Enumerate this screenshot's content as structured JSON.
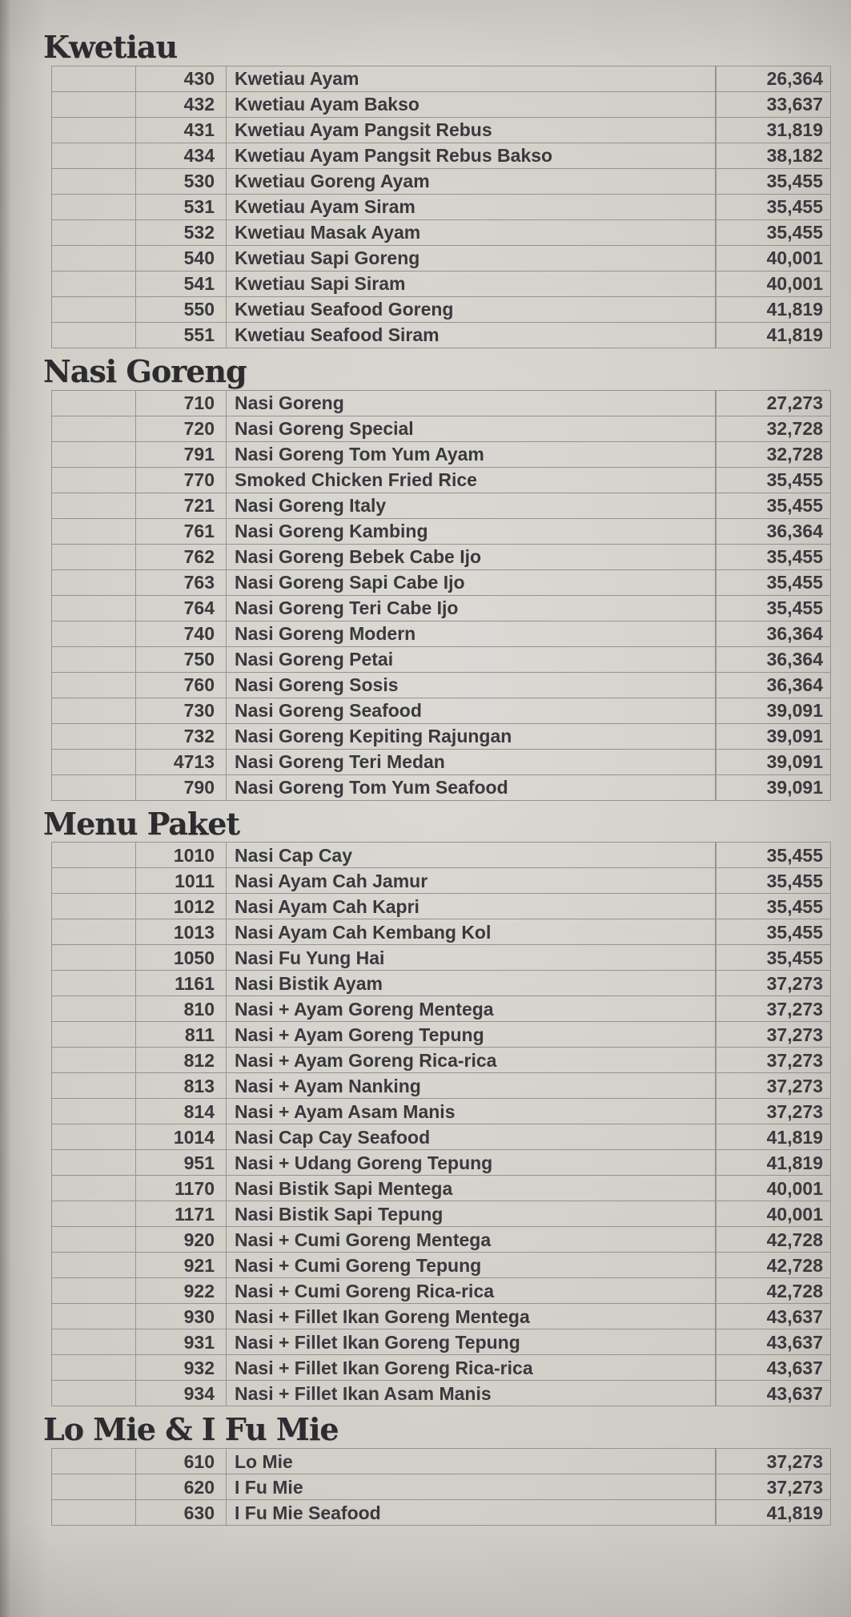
{
  "page": {
    "paper_color": "#d0cdc7",
    "text_color": "#38373b",
    "grid_color": "#96938e"
  },
  "sections": [
    {
      "title": "Kwetiau",
      "items": [
        {
          "code": "430",
          "name": "Kwetiau Ayam",
          "price": "26,364"
        },
        {
          "code": "432",
          "name": "Kwetiau Ayam Bakso",
          "price": "33,637"
        },
        {
          "code": "431",
          "name": "Kwetiau Ayam Pangsit Rebus",
          "price": "31,819"
        },
        {
          "code": "434",
          "name": "Kwetiau Ayam Pangsit Rebus Bakso",
          "price": "38,182"
        },
        {
          "code": "530",
          "name": "Kwetiau Goreng Ayam",
          "price": "35,455"
        },
        {
          "code": "531",
          "name": "Kwetiau Ayam Siram",
          "price": "35,455"
        },
        {
          "code": "532",
          "name": "Kwetiau Masak Ayam",
          "price": "35,455"
        },
        {
          "code": "540",
          "name": "Kwetiau Sapi Goreng",
          "price": "40,001"
        },
        {
          "code": "541",
          "name": "Kwetiau Sapi Siram",
          "price": "40,001"
        },
        {
          "code": "550",
          "name": "Kwetiau Seafood Goreng",
          "price": "41,819"
        },
        {
          "code": "551",
          "name": "Kwetiau Seafood Siram",
          "price": "41,819"
        }
      ]
    },
    {
      "title": "Nasi Goreng",
      "items": [
        {
          "code": "710",
          "name": "Nasi Goreng",
          "price": "27,273"
        },
        {
          "code": "720",
          "name": "Nasi Goreng Special",
          "price": "32,728"
        },
        {
          "code": "791",
          "name": "Nasi Goreng Tom Yum Ayam",
          "price": "32,728"
        },
        {
          "code": "770",
          "name": "Smoked Chicken Fried Rice",
          "price": "35,455"
        },
        {
          "code": "721",
          "name": "Nasi Goreng Italy",
          "price": "35,455"
        },
        {
          "code": "761",
          "name": "Nasi Goreng Kambing",
          "price": "36,364"
        },
        {
          "code": "762",
          "name": "Nasi Goreng Bebek Cabe Ijo",
          "price": "35,455"
        },
        {
          "code": "763",
          "name": "Nasi Goreng Sapi Cabe Ijo",
          "price": "35,455"
        },
        {
          "code": "764",
          "name": "Nasi Goreng Teri Cabe Ijo",
          "price": "35,455"
        },
        {
          "code": "740",
          "name": "Nasi Goreng Modern",
          "price": "36,364"
        },
        {
          "code": "750",
          "name": "Nasi Goreng Petai",
          "price": "36,364"
        },
        {
          "code": "760",
          "name": "Nasi Goreng Sosis",
          "price": "36,364"
        },
        {
          "code": "730",
          "name": "Nasi Goreng Seafood",
          "price": "39,091"
        },
        {
          "code": "732",
          "name": "Nasi Goreng Kepiting Rajungan",
          "price": "39,091"
        },
        {
          "code": "4713",
          "name": "Nasi Goreng Teri Medan",
          "price": "39,091"
        },
        {
          "code": "790",
          "name": "Nasi Goreng Tom Yum Seafood",
          "price": "39,091"
        }
      ]
    },
    {
      "title": "Menu Paket",
      "items": [
        {
          "code": "1010",
          "name": "Nasi Cap Cay",
          "price": "35,455"
        },
        {
          "code": "1011",
          "name": "Nasi Ayam Cah Jamur",
          "price": "35,455"
        },
        {
          "code": "1012",
          "name": "Nasi Ayam Cah Kapri",
          "price": "35,455"
        },
        {
          "code": "1013",
          "name": "Nasi Ayam Cah Kembang Kol",
          "price": "35,455"
        },
        {
          "code": "1050",
          "name": "Nasi Fu Yung Hai",
          "price": "35,455"
        },
        {
          "code": "1161",
          "name": "Nasi Bistik Ayam",
          "price": "37,273"
        },
        {
          "code": "810",
          "name": "Nasi + Ayam Goreng Mentega",
          "price": "37,273"
        },
        {
          "code": "811",
          "name": "Nasi + Ayam Goreng Tepung",
          "price": "37,273"
        },
        {
          "code": "812",
          "name": "Nasi + Ayam Goreng Rica-rica",
          "price": "37,273"
        },
        {
          "code": "813",
          "name": "Nasi + Ayam Nanking",
          "price": "37,273"
        },
        {
          "code": "814",
          "name": "Nasi + Ayam Asam Manis",
          "price": "37,273"
        },
        {
          "code": "1014",
          "name": "Nasi Cap Cay Seafood",
          "price": "41,819"
        },
        {
          "code": "951",
          "name": "Nasi + Udang Goreng Tepung",
          "price": "41,819"
        },
        {
          "code": "1170",
          "name": "Nasi Bistik Sapi Mentega",
          "price": "40,001"
        },
        {
          "code": "1171",
          "name": "Nasi Bistik Sapi Tepung",
          "price": "40,001"
        },
        {
          "code": "920",
          "name": "Nasi + Cumi Goreng Mentega",
          "price": "42,728"
        },
        {
          "code": "921",
          "name": "Nasi + Cumi Goreng Tepung",
          "price": "42,728"
        },
        {
          "code": "922",
          "name": "Nasi + Cumi Goreng Rica-rica",
          "price": "42,728"
        },
        {
          "code": "930",
          "name": "Nasi + Fillet Ikan Goreng Mentega",
          "price": "43,637"
        },
        {
          "code": "931",
          "name": "Nasi + Fillet Ikan Goreng Tepung",
          "price": "43,637"
        },
        {
          "code": "932",
          "name": "Nasi + Fillet Ikan Goreng Rica-rica",
          "price": "43,637"
        },
        {
          "code": "934",
          "name": "Nasi + Fillet Ikan Asam Manis",
          "price": "43,637"
        }
      ]
    },
    {
      "title": "Lo Mie & I Fu Mie",
      "items": [
        {
          "code": "610",
          "name": "Lo Mie",
          "price": "37,273"
        },
        {
          "code": "620",
          "name": "I Fu Mie",
          "price": "37,273"
        },
        {
          "code": "630",
          "name": "I Fu Mie Seafood",
          "price": "41,819"
        }
      ]
    }
  ]
}
